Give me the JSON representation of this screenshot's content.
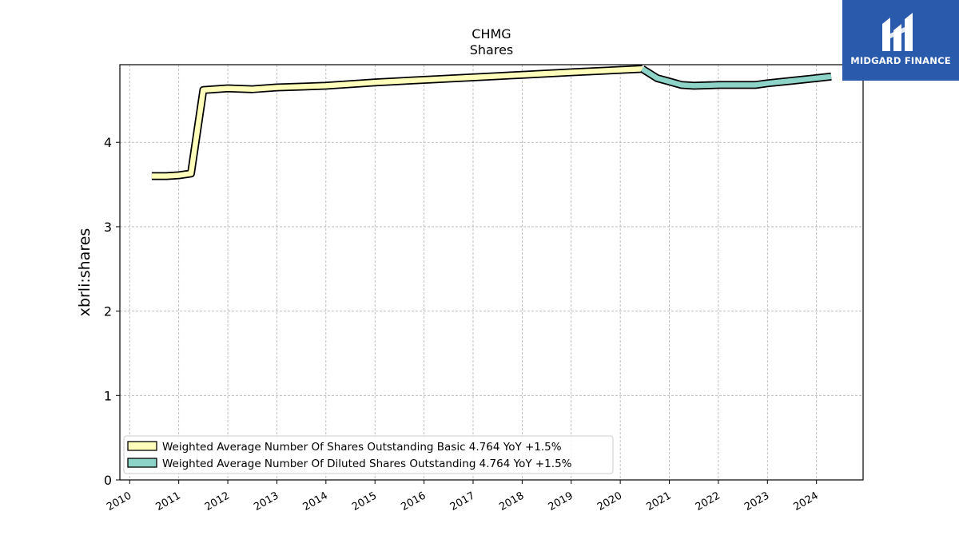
{
  "brand": {
    "name": "MIDGARD FINANCE",
    "background": "#2a5aab"
  },
  "chart_data": {
    "type": "line",
    "title": "CHMG",
    "subtitle": "Shares",
    "xlabel": "",
    "ylabel": "xbrli:shares",
    "xlim": [
      2009.8,
      2024.95
    ],
    "ylim": [
      0,
      4.92
    ],
    "x_ticks": [
      "2010",
      "2011",
      "2012",
      "2013",
      "2014",
      "2015",
      "2016",
      "2017",
      "2018",
      "2019",
      "2020",
      "2021",
      "2022",
      "2023",
      "2024"
    ],
    "y_ticks": [
      "0",
      "1",
      "2",
      "3",
      "4"
    ],
    "grid": true,
    "legend_position": "lower-left",
    "series": [
      {
        "name": "Weighted Average Number Of Shares Outstanding Basic  4.764 YoY +1.5%",
        "color": "#ffffbb",
        "x": [
          2010.45,
          2010.75,
          2011.0,
          2011.25,
          2011.5,
          2012.0,
          2012.5,
          2013.0,
          2013.5,
          2014.0,
          2015.0,
          2016.0,
          2017.0,
          2018.0,
          2019.0,
          2020.45
        ],
        "y": [
          3.6,
          3.6,
          3.61,
          3.63,
          4.62,
          4.64,
          4.63,
          4.65,
          4.66,
          4.67,
          4.71,
          4.74,
          4.77,
          4.8,
          4.83,
          4.87
        ]
      },
      {
        "name": "Weighted Average Number Of Diluted Shares Outstanding  4.764 YoY +1.5%",
        "color": "#8dd3c7",
        "x": [
          2020.45,
          2020.75,
          2021.0,
          2021.25,
          2021.5,
          2022.0,
          2022.5,
          2022.75,
          2023.0,
          2023.5,
          2024.0,
          2024.3
        ],
        "y": [
          4.87,
          4.76,
          4.72,
          4.68,
          4.67,
          4.68,
          4.68,
          4.68,
          4.7,
          4.73,
          4.76,
          4.78
        ]
      }
    ]
  }
}
